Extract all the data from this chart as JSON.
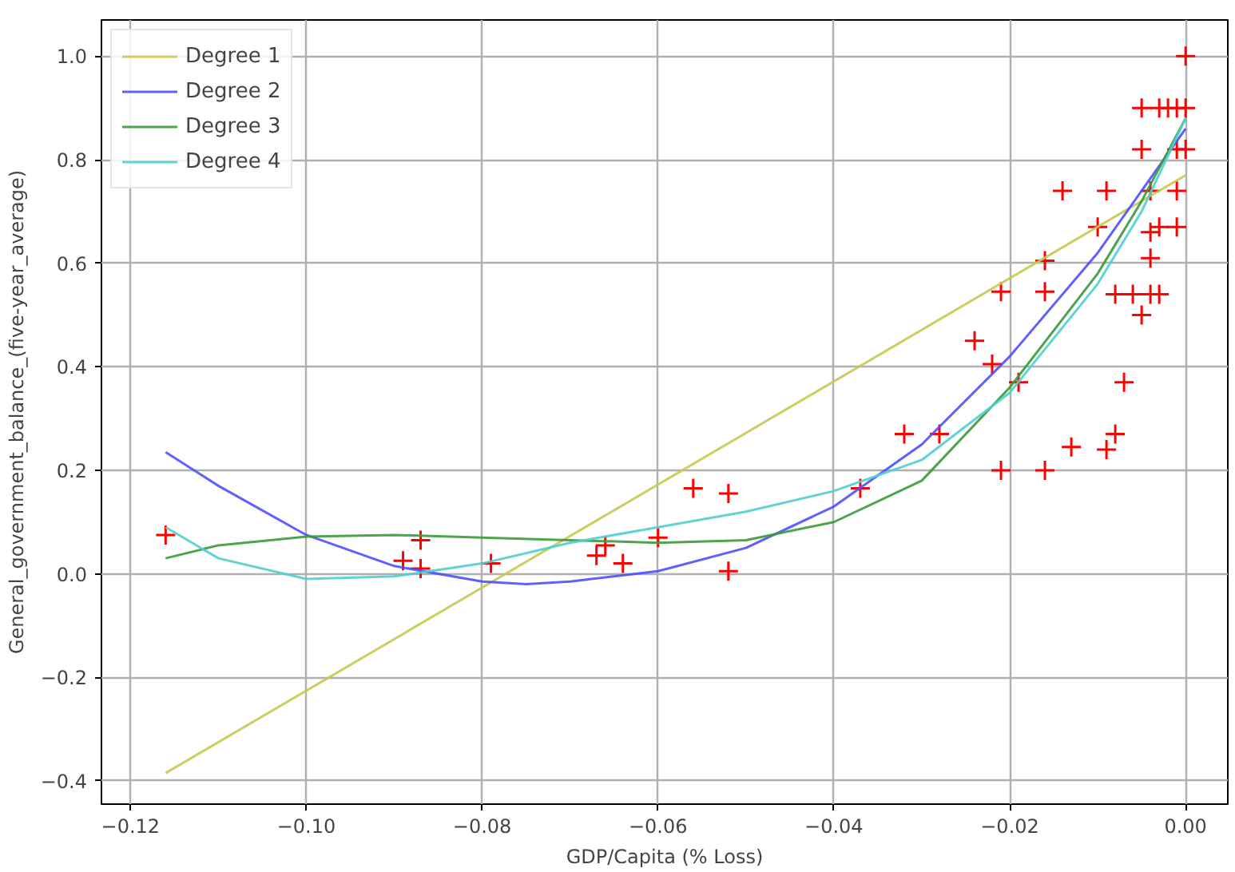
{
  "chart_data": {
    "type": "line",
    "xlabel": "GDP/Capita (% Loss)",
    "ylabel": "General_government_balance_(five-year_average)",
    "xlim": [
      -0.1233,
      0.0048
    ],
    "ylim": [
      -0.445,
      1.07
    ],
    "xticks": [
      {
        "value": -0.12,
        "label": "−0.12"
      },
      {
        "value": -0.1,
        "label": "−0.10"
      },
      {
        "value": -0.08,
        "label": "−0.08"
      },
      {
        "value": -0.06,
        "label": "−0.06"
      },
      {
        "value": -0.04,
        "label": "−0.04"
      },
      {
        "value": -0.02,
        "label": "−0.02"
      },
      {
        "value": 0,
        "label": "0.00"
      }
    ],
    "yticks": [
      {
        "value": -0.4,
        "label": "−0.4"
      },
      {
        "value": -0.2,
        "label": "−0.2"
      },
      {
        "value": 0,
        "label": "0.0"
      },
      {
        "value": 0.2,
        "label": "0.2"
      },
      {
        "value": 0.4,
        "label": "0.4"
      },
      {
        "value": 0.6,
        "label": "0.6"
      },
      {
        "value": 0.8,
        "label": "0.8"
      },
      {
        "value": 1.0,
        "label": "1.0"
      }
    ],
    "grid": true,
    "legend": "top left",
    "series": [
      {
        "type": "scatter",
        "marker": "cross",
        "color": "#ff0000",
        "x": [
          -0.116,
          -0.089,
          -0.087,
          -0.087,
          -0.079,
          -0.067,
          -0.066,
          -0.064,
          -0.06,
          -0.056,
          -0.052,
          -0.052,
          -0.037,
          -0.032,
          -0.028,
          -0.024,
          -0.022,
          -0.021,
          -0.021,
          -0.019,
          -0.016,
          -0.016,
          -0.016,
          -0.014,
          -0.013,
          -0.01,
          -0.009,
          -0.009,
          -0.008,
          -0.008,
          -0.007,
          -0.006,
          -0.005,
          -0.005,
          -0.005,
          -0.004,
          -0.004,
          -0.004,
          -0.004,
          -0.003,
          -0.003,
          -0.003,
          -0.002,
          -0.001,
          -0.001,
          -0.001,
          -0.001,
          0.0,
          0.0,
          0.0
        ],
        "values": [
          0.075,
          0.025,
          0.065,
          0.01,
          0.02,
          0.035,
          0.055,
          0.02,
          0.07,
          0.165,
          0.155,
          0.005,
          0.165,
          0.27,
          0.27,
          0.45,
          0.405,
          0.545,
          0.2,
          0.37,
          0.605,
          0.545,
          0.2,
          0.74,
          0.245,
          0.67,
          0.74,
          0.24,
          0.54,
          0.27,
          0.37,
          0.54,
          0.9,
          0.82,
          0.5,
          0.74,
          0.66,
          0.61,
          0.54,
          0.9,
          0.54,
          0.67,
          0.9,
          0.9,
          0.82,
          0.74,
          0.67,
          1.0,
          0.9,
          0.82
        ]
      },
      {
        "name": "Degree 1",
        "color": "#c8c850",
        "x": [
          -0.116,
          0.0
        ],
        "values": [
          -0.385,
          0.77
        ]
      },
      {
        "name": "Degree 2",
        "color": "#4f4fff",
        "x": [
          -0.116,
          -0.11,
          -0.1,
          -0.09,
          -0.08,
          -0.075,
          -0.07,
          -0.06,
          -0.05,
          -0.04,
          -0.03,
          -0.02,
          -0.01,
          -0.005,
          0.0
        ],
        "values": [
          0.235,
          0.17,
          0.075,
          0.015,
          -0.015,
          -0.02,
          -0.015,
          0.005,
          0.05,
          0.13,
          0.25,
          0.42,
          0.62,
          0.74,
          0.86
        ]
      },
      {
        "name": "Degree 3",
        "color": "#3a9a3a",
        "x": [
          -0.116,
          -0.11,
          -0.1,
          -0.09,
          -0.08,
          -0.07,
          -0.06,
          -0.05,
          -0.04,
          -0.03,
          -0.02,
          -0.01,
          -0.005,
          0.0
        ],
        "values": [
          0.03,
          0.055,
          0.072,
          0.075,
          0.07,
          0.065,
          0.06,
          0.065,
          0.1,
          0.18,
          0.36,
          0.58,
          0.72,
          0.88
        ]
      },
      {
        "name": "Degree 4",
        "color": "#4fcfcf",
        "x": [
          -0.116,
          -0.11,
          -0.1,
          -0.09,
          -0.08,
          -0.07,
          -0.06,
          -0.05,
          -0.04,
          -0.03,
          -0.02,
          -0.01,
          -0.005,
          0.0
        ],
        "values": [
          0.09,
          0.03,
          -0.01,
          -0.005,
          0.02,
          0.06,
          0.09,
          0.12,
          0.16,
          0.22,
          0.35,
          0.56,
          0.7,
          0.88
        ]
      }
    ]
  }
}
